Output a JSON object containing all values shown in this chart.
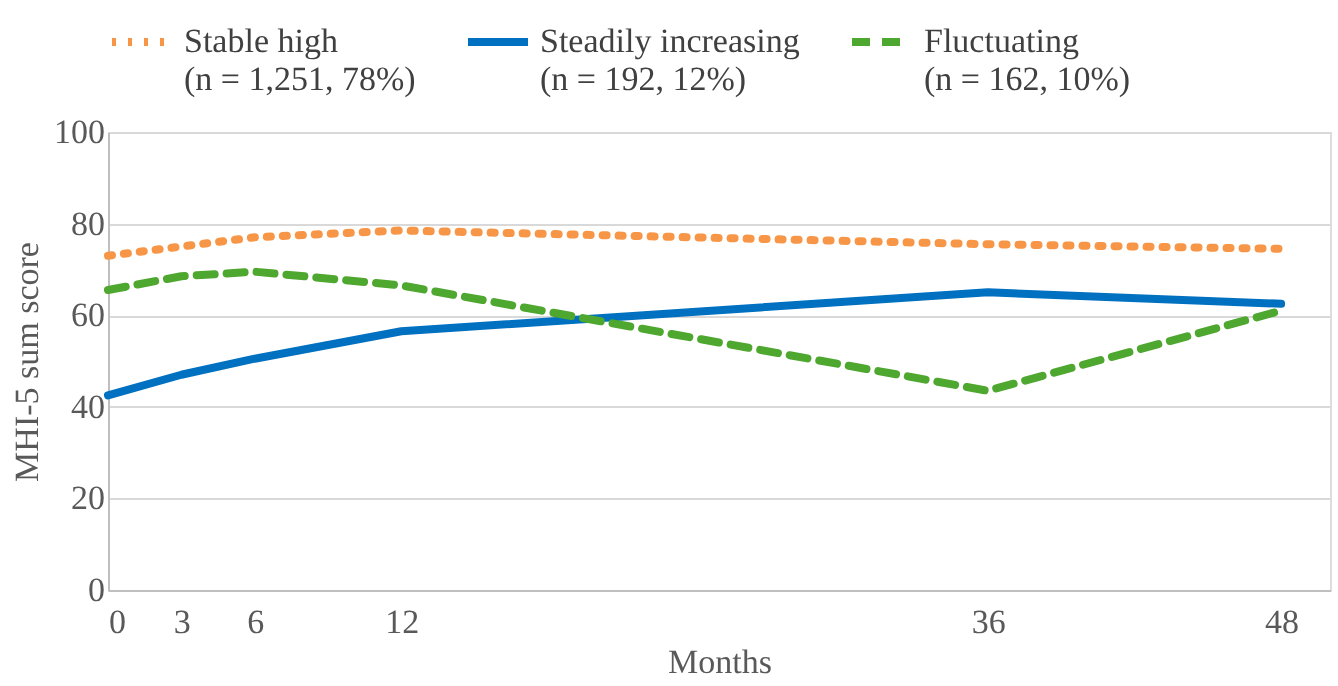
{
  "chart_data": {
    "type": "line",
    "xlabel": "Months",
    "ylabel": "MHI-5 sum score",
    "x": [
      0,
      3,
      6,
      12,
      36,
      48
    ],
    "series": [
      {
        "name": "Stable high (n = 1,251, 78%)",
        "color": "#f79646",
        "line_style": "dotted",
        "values": [
          73,
          75,
          77,
          78.5,
          75.5,
          74.5
        ]
      },
      {
        "name": "Steadily increasing (n = 192, 12%)",
        "color": "#0070c0",
        "line_style": "solid",
        "values": [
          42.5,
          47,
          50.5,
          56.5,
          65,
          62.5
        ]
      },
      {
        "name": "Fluctuating (n = 162, 10%)",
        "color": "#4ea72e",
        "line_style": "dashed",
        "values": [
          65.5,
          68.5,
          69.5,
          66.5,
          43.5,
          61
        ]
      }
    ],
    "xlim": [
      0,
      50
    ],
    "xticks": [
      0,
      3,
      6,
      12,
      36,
      48
    ],
    "ylim": [
      0,
      100
    ],
    "yticks": [
      0,
      20,
      40,
      60,
      80,
      100
    ],
    "grid": "y",
    "legend": "top",
    "marker": "none"
  }
}
